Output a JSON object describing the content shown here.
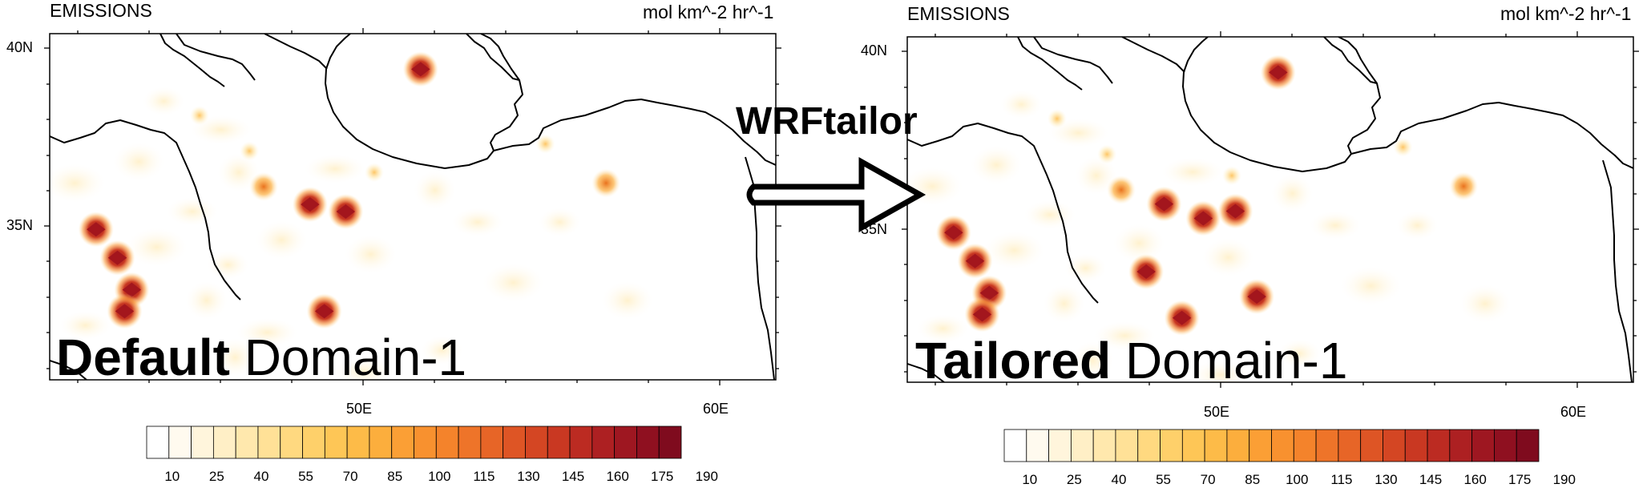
{
  "panels": [
    {
      "title": "EMISSIONS",
      "units": "mol km^-2 hr^-1",
      "label_bold": "Default",
      "label_rest": "Domain-1",
      "lat_ticks": [
        "40N",
        "35N"
      ],
      "lon_ticks": [
        "50E",
        "60E"
      ],
      "hotspots": [
        {
          "lon": 45.3,
          "lat": 35.0,
          "kind": "dark"
        },
        {
          "lon": 45.9,
          "lat": 34.2,
          "kind": "dark"
        },
        {
          "lon": 46.3,
          "lat": 33.3,
          "kind": "dark"
        },
        {
          "lon": 46.1,
          "lat": 32.7,
          "kind": "dark"
        },
        {
          "lon": 51.3,
          "lat": 35.7,
          "kind": "dark"
        },
        {
          "lon": 52.3,
          "lat": 35.5,
          "kind": "dark"
        },
        {
          "lon": 51.7,
          "lat": 32.7,
          "kind": "dark"
        },
        {
          "lon": 54.4,
          "lat": 39.5,
          "kind": "dark"
        },
        {
          "lon": 50.0,
          "lat": 36.2,
          "kind": "mid"
        },
        {
          "lon": 48.2,
          "lat": 38.2,
          "kind": "light"
        },
        {
          "lon": 49.6,
          "lat": 37.2,
          "kind": "light"
        },
        {
          "lon": 53.1,
          "lat": 36.6,
          "kind": "light"
        },
        {
          "lon": 59.6,
          "lat": 36.3,
          "kind": "mid"
        },
        {
          "lon": 57.9,
          "lat": 37.4,
          "kind": "light"
        }
      ]
    },
    {
      "title": "EMISSIONS",
      "units": "mol km^-2 hr^-1",
      "label_bold": "Tailored",
      "label_rest": "Domain-1",
      "lat_ticks": [
        "40N",
        "35N"
      ],
      "lon_ticks": [
        "50E",
        "60E"
      ],
      "hotspots": [
        {
          "lon": 45.3,
          "lat": 35.0,
          "kind": "dark"
        },
        {
          "lon": 45.9,
          "lat": 34.2,
          "kind": "dark"
        },
        {
          "lon": 46.3,
          "lat": 33.3,
          "kind": "dark"
        },
        {
          "lon": 46.1,
          "lat": 32.7,
          "kind": "dark"
        },
        {
          "lon": 51.2,
          "lat": 35.8,
          "kind": "dark"
        },
        {
          "lon": 52.3,
          "lat": 35.4,
          "kind": "dark"
        },
        {
          "lon": 53.2,
          "lat": 35.6,
          "kind": "dark"
        },
        {
          "lon": 50.7,
          "lat": 33.9,
          "kind": "dark"
        },
        {
          "lon": 53.8,
          "lat": 33.2,
          "kind": "dark"
        },
        {
          "lon": 51.7,
          "lat": 32.6,
          "kind": "dark"
        },
        {
          "lon": 54.4,
          "lat": 39.5,
          "kind": "dark"
        },
        {
          "lon": 50.0,
          "lat": 36.2,
          "kind": "mid"
        },
        {
          "lon": 48.2,
          "lat": 38.2,
          "kind": "light"
        },
        {
          "lon": 49.6,
          "lat": 37.2,
          "kind": "light"
        },
        {
          "lon": 53.1,
          "lat": 36.6,
          "kind": "light"
        },
        {
          "lon": 59.6,
          "lat": 36.3,
          "kind": "mid"
        },
        {
          "lon": 57.9,
          "lat": 37.4,
          "kind": "light"
        }
      ]
    }
  ],
  "colorbar": {
    "labels": [
      "10",
      "25",
      "40",
      "55",
      "70",
      "85",
      "100",
      "115",
      "130",
      "145",
      "160",
      "175",
      "190"
    ],
    "colors": [
      "#ffffff",
      "#fffaef",
      "#fff5dc",
      "#ffefc6",
      "#ffe8ad",
      "#ffe197",
      "#ffd980",
      "#fed06a",
      "#fec656",
      "#fdbb48",
      "#fcae3d",
      "#fb9f35",
      "#f8912f",
      "#f4832b",
      "#ee7429",
      "#e76527",
      "#de5525",
      "#d44623",
      "#c93822",
      "#bc2b22",
      "#ad2022",
      "#9e1721",
      "#8f1020",
      "#7f0b1e"
    ]
  },
  "arrow_label": "WRFtailor",
  "colors": {
    "coast": "#000000",
    "hotspot_dark": "#a3161d",
    "hotspot_mid": "#e9721e",
    "hotspot_light": "#fbc878"
  }
}
